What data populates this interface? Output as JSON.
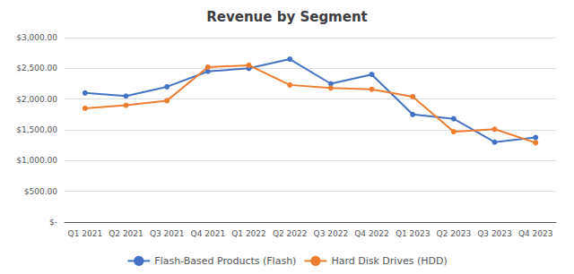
{
  "chart_data": {
    "type": "line",
    "title": "Revenue by Segment",
    "categories": [
      "Q1 2021",
      "Q2 2021",
      "Q3 2021",
      "Q4 2021",
      "Q1 2022",
      "Q2 2022",
      "Q3 2022",
      "Q4 2022",
      "Q1 2023",
      "Q2 2023",
      "Q3 2023",
      "Q4 2023"
    ],
    "series": [
      {
        "name": "Flash-Based Products (Flash)",
        "color": "#4472C4",
        "values": [
          2100,
          2050,
          2200,
          2450,
          2500,
          2650,
          2250,
          2400,
          1750,
          1680,
          1300,
          1375
        ]
      },
      {
        "name": "Hard Disk Drives (HDD)",
        "color": "#ED7D31",
        "values": [
          1850,
          1900,
          1975,
          2520,
          2550,
          2230,
          2180,
          2160,
          2040,
          1470,
          1510,
          1290
        ]
      }
    ],
    "ylim": [
      0,
      3000
    ],
    "yticks": [
      {
        "value": 0,
        "label": "$-"
      },
      {
        "value": 500,
        "label": "$500.00"
      },
      {
        "value": 1000,
        "label": "$1,000.00"
      },
      {
        "value": 1500,
        "label": "$1,500.00"
      },
      {
        "value": 2000,
        "label": "$2,000.00"
      },
      {
        "value": 2500,
        "label": "$2,500.00"
      },
      {
        "value": 3000,
        "label": "$3,000.00"
      }
    ],
    "grid": true,
    "legend": "bottom",
    "marker": "circle"
  }
}
